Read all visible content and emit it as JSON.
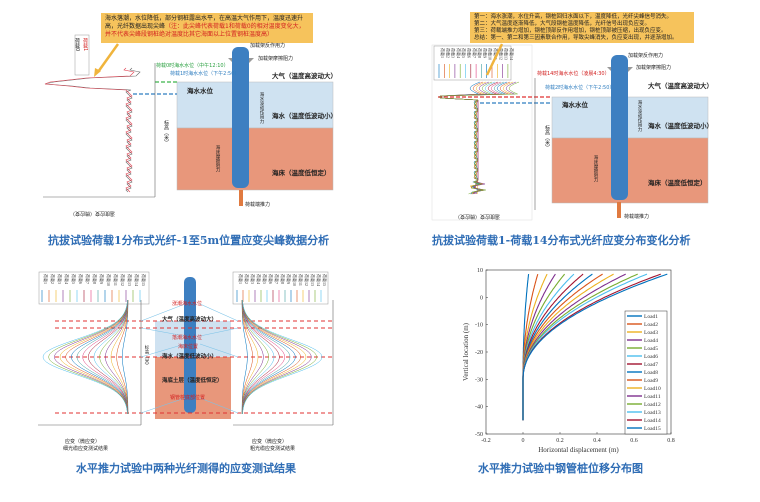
{
  "panel_tl": {
    "note_black": "海水落潮，水位降低，部分钢桩露出水平，在高温大气作用下，温度迅速升高，光纤数据出现尖峰",
    "note_red": "（注：此尖峰代表荷载1和荷载0的相对温度变化大，并不代表尖峰段钢桩绝对温度比其它海面以上位置钢桩温度高）",
    "legend": [
      "荷载0",
      "荷载1"
    ],
    "water_level_0": "荷载0时海水水位（中午12:10）",
    "water_level_1": "荷载1时海水水位（下午2:50）",
    "reaction": "加载架反作用力",
    "friction": "加载架摩擦阻力",
    "atmosphere": "大气（温度高波动大）",
    "sea_level": "海水水位",
    "seawater": "海水（温度低波动小）",
    "seabed": "海床（温度低恒定）",
    "wave_force": "海水波动作用力",
    "seabed_friction": "海床摩擦阻力",
    "push": "荷载端推力",
    "ylabel": "标高（米）",
    "xlabel": "温度应变（微应变）",
    "yticks": [
      "10",
      "0",
      "-10",
      "-20",
      "-30",
      "-40",
      "-50"
    ],
    "xticks": [
      "160",
      "140",
      "120",
      "100",
      "80",
      "60",
      "40",
      "20",
      "0",
      "-20"
    ],
    "caption": "抗拔试验荷载1分布式光纤-1至5m位置应变尖峰数据分析"
  },
  "panel_tr": {
    "note_lines": [
      "第一：海水涨潮，水位升高，钢桩回归水面以下，温度降低，光纤尖峰信号消失。",
      "第二：大气温度逐渐降低，大气段钢桩温度降低，光纤信号出现负应变。",
      "第三：荷载端推力增加，钢桩顶部反作用增加，钢桩顶部被压缩，出现负应变。",
      "总结：第一、第二和第三因素联合作用，导致尖峰消失，负应变出现，并逐渐增加。"
    ],
    "legend": [
      "荷载1",
      "荷载2",
      "荷载3",
      "荷载4",
      "荷载5",
      "荷载6",
      "荷载7",
      "荷载8",
      "荷载9",
      "荷载10",
      "荷载11",
      "荷载12",
      "荷载13",
      "荷载14"
    ],
    "water_level_14": "荷载14时海水水位（凌晨4:30）",
    "water_level_2": "荷载2时海水水位（下午2:50）",
    "reaction": "加载架反作用力",
    "friction": "加载架摩擦阻力",
    "atmosphere": "大气（温度高波动大）",
    "sea_level": "海水水位",
    "seawater": "海水（温度低波动小）",
    "seabed": "海床（温度低恒定）",
    "wave_force": "海水波动作用力",
    "seabed_friction": "海床摩擦阻力",
    "push": "荷载端推力",
    "ylabel": "标高（米）",
    "xlabel": "温度应变（微应变）",
    "caption": "抗拔试验荷载1-荷载14分布式光纤应变分布变化分析"
  },
  "panel_bl": {
    "legend": [
      "荷载1",
      "荷载2",
      "荷载3",
      "荷载4",
      "荷载5",
      "荷载6",
      "荷载7",
      "荷载8",
      "荷载9",
      "荷载10",
      "荷载11",
      "荷载12",
      "荷载13",
      "荷载14",
      "荷载15"
    ],
    "high_tide": "涨潮海水水位",
    "atmosphere": "大气（温度高波动大）",
    "low_tide": "落潮海水水位",
    "seabed_pos": "海床位置",
    "seawater": "海水（温度低波动小）",
    "soil": "海底土层（温度低恒定）",
    "pile_bottom": "钢管桩底部位置",
    "left_xlabel": "应变（微应变）",
    "left_result": "细光缆应变测试结果",
    "right_xlabel": "应变（微应变）",
    "right_result": "粗光缆应变测试结果",
    "ylabel": "标高（米）",
    "caption": "水平推力试验中两种光纤测得的应变测试结果"
  },
  "chart_data": {
    "type": "line",
    "title": "",
    "xlabel": "Horizontal displacement (m)",
    "ylabel": "Vertical location (m)",
    "xlim": [
      -0.2,
      0.8
    ],
    "ylim": [
      -50,
      10
    ],
    "xticks": [
      "-0.2",
      "0",
      "0.2",
      "0.4",
      "0.6",
      "0.8"
    ],
    "yticks": [
      "10",
      "0",
      "-10",
      "-20",
      "-30",
      "-40",
      "-50"
    ],
    "legend_position": "right",
    "pile_bottom": -45,
    "pile_top": 8.5,
    "series": [
      {
        "name": "Load1",
        "top_displacement": 0.03,
        "color": "#0072BD"
      },
      {
        "name": "Load2",
        "top_displacement": 0.08,
        "color": "#D95319"
      },
      {
        "name": "Load3",
        "top_displacement": 0.13,
        "color": "#EDB120"
      },
      {
        "name": "Load4",
        "top_displacement": 0.175,
        "color": "#7E2F8E"
      },
      {
        "name": "Load5",
        "top_displacement": 0.225,
        "color": "#77AC30"
      },
      {
        "name": "Load6",
        "top_displacement": 0.275,
        "color": "#4DBEEE"
      },
      {
        "name": "Load7",
        "top_displacement": 0.325,
        "color": "#A2142F"
      },
      {
        "name": "Load8",
        "top_displacement": 0.375,
        "color": "#0072BD"
      },
      {
        "name": "Load9",
        "top_displacement": 0.43,
        "color": "#D95319"
      },
      {
        "name": "Load10",
        "top_displacement": 0.49,
        "color": "#EDB120"
      },
      {
        "name": "Load11",
        "top_displacement": 0.555,
        "color": "#7E2F8E"
      },
      {
        "name": "Load12",
        "top_displacement": 0.62,
        "color": "#77AC30"
      },
      {
        "name": "Load13",
        "top_displacement": 0.67,
        "color": "#4DBEEE"
      },
      {
        "name": "Load14",
        "top_displacement": 0.745,
        "color": "#A2142F"
      },
      {
        "name": "Load15",
        "top_displacement": 0.78,
        "color": "#0072BD"
      }
    ],
    "caption": "水平推力试验中钢管桩位移分布图"
  }
}
